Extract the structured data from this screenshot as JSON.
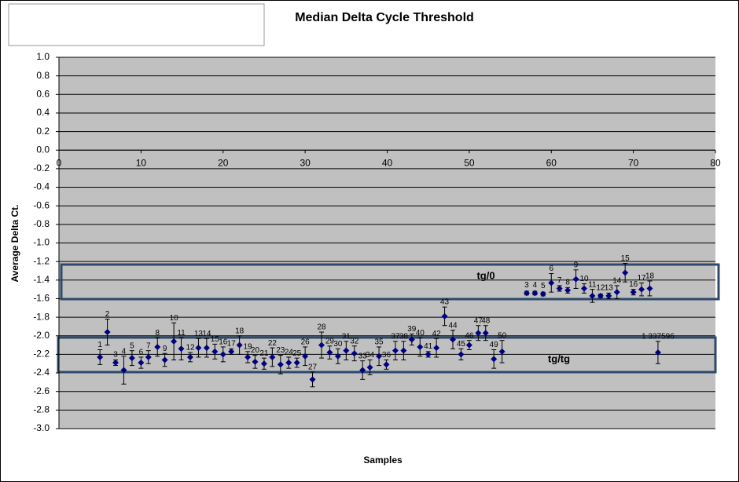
{
  "chart_data": {
    "type": "scatter",
    "title": "Median Delta Cycle Threshold",
    "x_label": "Samples",
    "y_label": "Average Delta Ct.",
    "xlim": [
      0,
      80
    ],
    "xticks": [
      0,
      10,
      20,
      30,
      40,
      50,
      60,
      70,
      80
    ],
    "ylim": [
      -3.0,
      1.0
    ],
    "yticks": [
      {
        "value": 1,
        "label": "1.0"
      },
      0.8,
      0.6,
      0.4,
      0.2,
      {
        "value": 0,
        "label": "0.0"
      },
      -0.2,
      -0.4,
      -0.6,
      -0.8,
      {
        "value": -1,
        "label": "-1.0"
      },
      -1.2,
      -1.4,
      -1.6,
      -1.8,
      {
        "value": -2,
        "label": "-2.0"
      },
      -2.2,
      -2.4,
      -2.6,
      -2.8,
      {
        "value": -3,
        "label": "-3.0"
      }
    ],
    "grid": true,
    "color": "#000080",
    "x": [
      5.0,
      5.9,
      6.9,
      7.9,
      8.9,
      10.0,
      10.9,
      12.0,
      12.9,
      14.0,
      14.9,
      16.0,
      17.0,
      18.0,
      19.0,
      20.0,
      21.0,
      22.0,
      23.0,
      23.9,
      25.0,
      26.0,
      27.0,
      28.0,
      29.0,
      30.0,
      30.9,
      32.0,
      33.0,
      34.0,
      35.0,
      36.0,
      37.0,
      37.9,
      39.0,
      39.9,
      41.0,
      42.0,
      43.0,
      44.0,
      45.0,
      46.0,
      47.0,
      48.0,
      49.0,
      50.0,
      51.1,
      52.0,
      53.0,
      54.0,
      57.0,
      58.0,
      59.0,
      60.0,
      61.0,
      62.0,
      63.0,
      64.0,
      65.0,
      66.0,
      67.0,
      68.0,
      69.0,
      70.0,
      71.0,
      72.0,
      73.0
    ],
    "values": [
      -2.23,
      -1.96,
      -2.29,
      -2.37,
      -2.24,
      -2.29,
      -2.23,
      -2.12,
      -2.26,
      -2.06,
      -2.14,
      -2.23,
      -2.13,
      -2.13,
      -2.17,
      -2.2,
      -2.17,
      -2.1,
      -2.23,
      -2.28,
      -2.3,
      -2.23,
      -2.31,
      -2.29,
      -2.29,
      -2.22,
      -2.47,
      -2.1,
      -2.18,
      -2.22,
      -2.16,
      -2.19,
      -2.37,
      -2.34,
      -2.22,
      -2.31,
      -2.16,
      -2.16,
      -2.04,
      -2.12,
      -2.2,
      -2.13,
      -1.79,
      -2.04,
      -2.2,
      -2.1,
      -1.97,
      -1.97,
      -2.25,
      -2.17,
      -1.54,
      -1.54,
      -1.55,
      -1.43,
      -1.49,
      -1.51,
      -1.39,
      -1.49,
      -1.57,
      -1.57,
      -1.57,
      -1.53,
      -1.32,
      -1.53,
      -1.5,
      -1.49,
      -2.18
    ],
    "errors": [
      0.08,
      0.14,
      0.03,
      0.15,
      0.08,
      0.06,
      0.07,
      0.1,
      0.07,
      0.2,
      0.12,
      0.05,
      0.1,
      0.1,
      0.08,
      0.08,
      0.03,
      0.1,
      0.06,
      0.07,
      0.06,
      0.1,
      0.1,
      0.06,
      0.05,
      0.1,
      0.08,
      0.14,
      0.07,
      0.08,
      0.1,
      0.08,
      0.1,
      0.08,
      0.1,
      0.05,
      0.1,
      0.1,
      0.06,
      0.1,
      0.03,
      0.1,
      0.1,
      0.1,
      0.06,
      0.05,
      0.08,
      0.08,
      0.1,
      0.12,
      0.02,
      0.02,
      0.02,
      0.1,
      0.03,
      0.03,
      0.1,
      0.05,
      0.07,
      0.02,
      0.03,
      0.07,
      0.1,
      0.03,
      0.07,
      0.08,
      0.12
    ],
    "point_labels": [
      "1",
      "2",
      "3",
      "4",
      "5",
      "6",
      "7",
      "8",
      "9",
      "10",
      "11",
      "12",
      "13",
      "14",
      "15",
      "16",
      "17",
      "18",
      "19",
      "20",
      "21",
      "22",
      "23",
      "24",
      "25",
      "26",
      "27",
      "28",
      "29",
      "30",
      "31",
      "32",
      "33",
      "34",
      "35",
      "36",
      "37",
      "38",
      "39",
      "40",
      "41",
      "42",
      "43",
      "44",
      "45",
      "46",
      "47",
      "48",
      "49",
      "50",
      "3",
      "4",
      "5",
      "6",
      "7",
      "8",
      "9",
      "10",
      "11",
      "12",
      "13",
      "14",
      "15",
      "16",
      "17",
      "18",
      "1 337596"
    ],
    "annotations": [
      "tg/0",
      "tg/tg"
    ]
  }
}
